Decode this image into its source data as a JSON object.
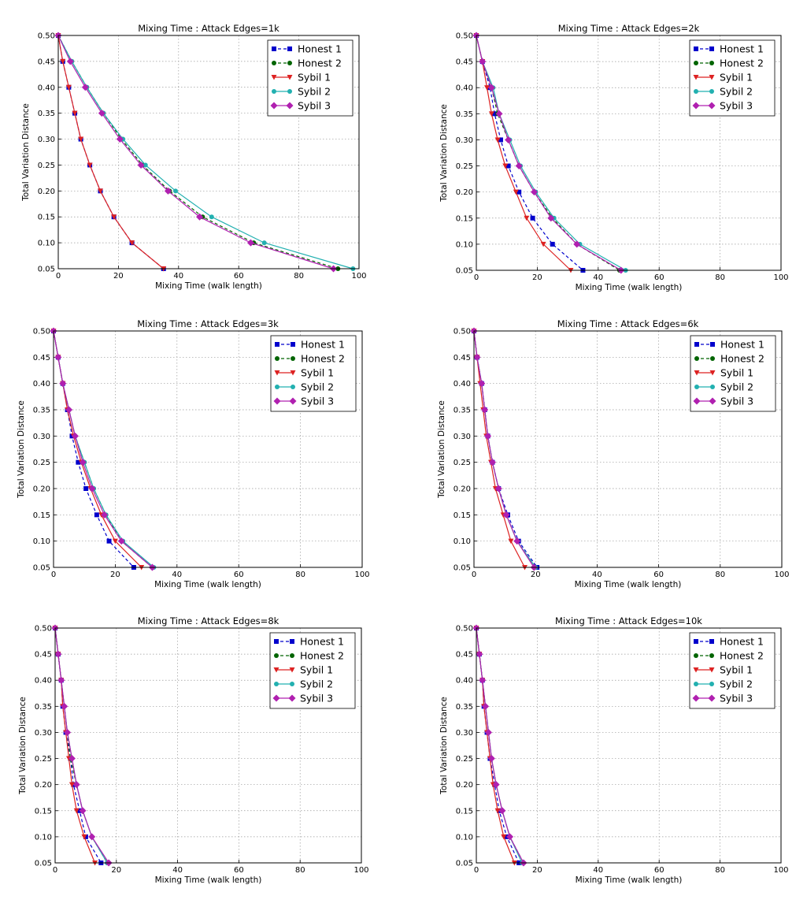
{
  "chart_data": [
    {
      "type": "line",
      "title": "Mixing Time : Attack Edges=1k",
      "xlabel": "Mixing Time (walk length)",
      "ylabel": "Total Variation Distance",
      "xlim": [
        0,
        100
      ],
      "ylim": [
        0.05,
        0.5
      ],
      "xticks": [
        "0",
        "20",
        "40",
        "60",
        "80",
        "100"
      ],
      "yticks": [
        "0.05",
        "0.10",
        "0.15",
        "0.20",
        "0.25",
        "0.30",
        "0.35",
        "0.40",
        "0.45",
        "0.50"
      ],
      "grid": true,
      "legend": "top-right",
      "y": [
        0.5,
        0.45,
        0.4,
        0.35,
        0.3,
        0.25,
        0.2,
        0.15,
        0.1,
        0.05
      ],
      "series": [
        {
          "name": "Honest 1",
          "x": [
            0,
            1.5,
            3.5,
            5.5,
            7.5,
            10.5,
            14,
            18.5,
            24.5,
            35
          ]
        },
        {
          "name": "Honest 2",
          "x": [
            0,
            4.5,
            9.5,
            15,
            21,
            28,
            37,
            48,
            65,
            93
          ]
        },
        {
          "name": "Sybil 1",
          "x": [
            0,
            1.5,
            3.5,
            5.5,
            7.5,
            10.5,
            14,
            18.5,
            24.5,
            35
          ]
        },
        {
          "name": "Sybil 2",
          "x": [
            0,
            4.5,
            9.5,
            15,
            21.5,
            29,
            39,
            51,
            68.5,
            98
          ]
        },
        {
          "name": "Sybil 3",
          "x": [
            0,
            4,
            9,
            14.5,
            20.5,
            27.5,
            36.5,
            47,
            64,
            91.5
          ]
        }
      ]
    },
    {
      "type": "line",
      "title": "Mixing Time : Attack Edges=2k",
      "xlabel": "Mixing Time (walk length)",
      "ylabel": "Total Variation Distance",
      "xlim": [
        0,
        100
      ],
      "ylim": [
        0.05,
        0.5
      ],
      "xticks": [
        "0",
        "20",
        "40",
        "60",
        "80",
        "100"
      ],
      "yticks": [
        "0.05",
        "0.10",
        "0.15",
        "0.20",
        "0.25",
        "0.30",
        "0.35",
        "0.40",
        "0.45",
        "0.50"
      ],
      "grid": true,
      "legend": "top-right",
      "y": [
        0.5,
        0.45,
        0.4,
        0.35,
        0.3,
        0.25,
        0.2,
        0.15,
        0.1,
        0.05
      ],
      "series": [
        {
          "name": "Honest 1",
          "x": [
            0,
            2,
            4.5,
            6,
            8,
            10.5,
            14,
            18.5,
            25,
            35
          ]
        },
        {
          "name": "Honest 2",
          "x": [
            0,
            2,
            5,
            7,
            10.5,
            14,
            19,
            25,
            33,
            47
          ]
        },
        {
          "name": "Sybil 1",
          "x": [
            0,
            2,
            3.5,
            5,
            7,
            9.5,
            13,
            16.5,
            22,
            31
          ]
        },
        {
          "name": "Sybil 2",
          "x": [
            0,
            2,
            5.5,
            7.5,
            11,
            14.5,
            19.5,
            25.5,
            34,
            49
          ]
        },
        {
          "name": "Sybil 3",
          "x": [
            0,
            2,
            5,
            7.5,
            10.5,
            14,
            19,
            24.5,
            33,
            47.5
          ]
        }
      ]
    },
    {
      "type": "line",
      "title": "Mixing Time : Attack Edges=3k",
      "xlabel": "Mixing Time (walk length)",
      "ylabel": "Total Variation Distance",
      "xlim": [
        0,
        100
      ],
      "ylim": [
        0.05,
        0.5
      ],
      "xticks": [
        "0",
        "20",
        "40",
        "60",
        "80",
        "100"
      ],
      "yticks": [
        "0.05",
        "0.10",
        "0.15",
        "0.20",
        "0.25",
        "0.30",
        "0.35",
        "0.40",
        "0.45",
        "0.50"
      ],
      "grid": true,
      "legend": "top-right",
      "y": [
        0.5,
        0.45,
        0.4,
        0.35,
        0.3,
        0.25,
        0.2,
        0.15,
        0.1,
        0.05
      ],
      "series": [
        {
          "name": "Honest 1",
          "x": [
            0,
            1.5,
            3,
            4.5,
            6,
            8,
            10.5,
            14,
            18,
            26
          ]
        },
        {
          "name": "Honest 2",
          "x": [
            0,
            1.5,
            3,
            5,
            7,
            10,
            13,
            17,
            22,
            32
          ]
        },
        {
          "name": "Sybil 1",
          "x": [
            0,
            1.5,
            3,
            4.5,
            6.5,
            9,
            12,
            15.5,
            20,
            28.5
          ]
        },
        {
          "name": "Sybil 2",
          "x": [
            0,
            1.5,
            3,
            5,
            7,
            10,
            13,
            17,
            22.5,
            32.5
          ]
        },
        {
          "name": "Sybil 3",
          "x": [
            0,
            1.5,
            3,
            5,
            7,
            9.5,
            12.5,
            16.5,
            22,
            32
          ]
        }
      ]
    },
    {
      "type": "line",
      "title": "Mixing Time : Attack Edges=6k",
      "xlabel": "Mixing Time (walk length)",
      "ylabel": "Total Variation Distance",
      "xlim": [
        0,
        100
      ],
      "ylim": [
        0.05,
        0.5
      ],
      "xticks": [
        "0",
        "20",
        "40",
        "60",
        "80",
        "100"
      ],
      "yticks": [
        "0.05",
        "0.10",
        "0.15",
        "0.20",
        "0.25",
        "0.30",
        "0.35",
        "0.40",
        "0.45",
        "0.50"
      ],
      "grid": true,
      "legend": "top-right",
      "y": [
        0.5,
        0.45,
        0.4,
        0.35,
        0.3,
        0.25,
        0.2,
        0.15,
        0.1,
        0.05
      ],
      "series": [
        {
          "name": "Honest 1",
          "x": [
            0,
            1,
            2.5,
            3.5,
            4.5,
            6,
            8,
            11,
            14.5,
            20.5
          ]
        },
        {
          "name": "Honest 2",
          "x": [
            0,
            1,
            2.5,
            3.5,
            4.5,
            6,
            8,
            10.5,
            14,
            20
          ]
        },
        {
          "name": "Sybil 1",
          "x": [
            0,
            1,
            2,
            3,
            4,
            5.5,
            7,
            9.5,
            12,
            16.5
          ]
        },
        {
          "name": "Sybil 2",
          "x": [
            0,
            1,
            2.5,
            3.5,
            4.5,
            6,
            8,
            10.5,
            14,
            20
          ]
        },
        {
          "name": "Sybil 3",
          "x": [
            0,
            1,
            2.5,
            3.5,
            4.5,
            6,
            8,
            10.5,
            14,
            19.5
          ]
        }
      ]
    },
    {
      "type": "line",
      "title": "Mixing Time : Attack Edges=8k",
      "xlabel": "Mixing Time (walk length)",
      "ylabel": "Total Variation Distance",
      "xlim": [
        0,
        100
      ],
      "ylim": [
        0.05,
        0.5
      ],
      "xticks": [
        "0",
        "20",
        "40",
        "60",
        "80",
        "100"
      ],
      "yticks": [
        "0.05",
        "0.10",
        "0.15",
        "0.20",
        "0.25",
        "0.30",
        "0.35",
        "0.40",
        "0.45",
        "0.50"
      ],
      "grid": true,
      "legend": "top-right",
      "y": [
        0.5,
        0.45,
        0.4,
        0.35,
        0.3,
        0.25,
        0.2,
        0.15,
        0.1,
        0.05
      ],
      "series": [
        {
          "name": "Honest 1",
          "x": [
            0,
            1,
            2,
            2.5,
            3.5,
            5,
            6,
            8,
            10,
            15
          ]
        },
        {
          "name": "Honest 2",
          "x": [
            0,
            1,
            2,
            3,
            4,
            5,
            7,
            9,
            12,
            17
          ]
        },
        {
          "name": "Sybil 1",
          "x": [
            0,
            1,
            2,
            2.5,
            3.5,
            4.5,
            5.5,
            7,
            9.5,
            13
          ]
        },
        {
          "name": "Sybil 2",
          "x": [
            0,
            1,
            2,
            3,
            4,
            5.5,
            7,
            9,
            12,
            17
          ]
        },
        {
          "name": "Sybil 3",
          "x": [
            0,
            1,
            2,
            3,
            4,
            5.5,
            7,
            9,
            12,
            17.5
          ]
        }
      ]
    },
    {
      "type": "line",
      "title": "Mixing Time : Attack Edges=10k",
      "xlabel": "Mixing Time (walk length)",
      "ylabel": "Total Variation Distance",
      "xlim": [
        0,
        100
      ],
      "ylim": [
        0.05,
        0.5
      ],
      "xticks": [
        "0",
        "20",
        "40",
        "60",
        "80",
        "100"
      ],
      "yticks": [
        "0.05",
        "0.10",
        "0.15",
        "0.20",
        "0.25",
        "0.30",
        "0.35",
        "0.40",
        "0.45",
        "0.50"
      ],
      "grid": true,
      "legend": "top-right",
      "y": [
        0.5,
        0.45,
        0.4,
        0.35,
        0.3,
        0.25,
        0.2,
        0.15,
        0.1,
        0.05
      ],
      "series": [
        {
          "name": "Honest 1",
          "x": [
            0,
            1,
            2,
            2.5,
            3.5,
            4.5,
            6,
            7.5,
            10,
            14
          ]
        },
        {
          "name": "Honest 2",
          "x": [
            0,
            1,
            2,
            3,
            4,
            5,
            6.5,
            8.5,
            11,
            15.5
          ]
        },
        {
          "name": "Sybil 1",
          "x": [
            0,
            1,
            2,
            2.5,
            3.5,
            4.5,
            5.5,
            7,
            9,
            12.5
          ]
        },
        {
          "name": "Sybil 2",
          "x": [
            0,
            1,
            2,
            3,
            4,
            5,
            6.5,
            8.5,
            11,
            15
          ]
        },
        {
          "name": "Sybil 3",
          "x": [
            0,
            1,
            2,
            3,
            4,
            5,
            6.5,
            8.5,
            11,
            15.5
          ]
        }
      ]
    }
  ],
  "series_style": [
    {
      "name": "Honest 1",
      "color": "#0000cc",
      "marker": "square",
      "dash": "4,3"
    },
    {
      "name": "Honest 2",
      "color": "#006400",
      "marker": "circle",
      "dash": "4,3"
    },
    {
      "name": "Sybil 1",
      "color": "#dd2222",
      "marker": "triangle-down",
      "dash": ""
    },
    {
      "name": "Sybil 2",
      "color": "#22b0b0",
      "marker": "circle",
      "dash": ""
    },
    {
      "name": "Sybil 3",
      "color": "#b020b0",
      "marker": "diamond",
      "dash": ""
    }
  ]
}
